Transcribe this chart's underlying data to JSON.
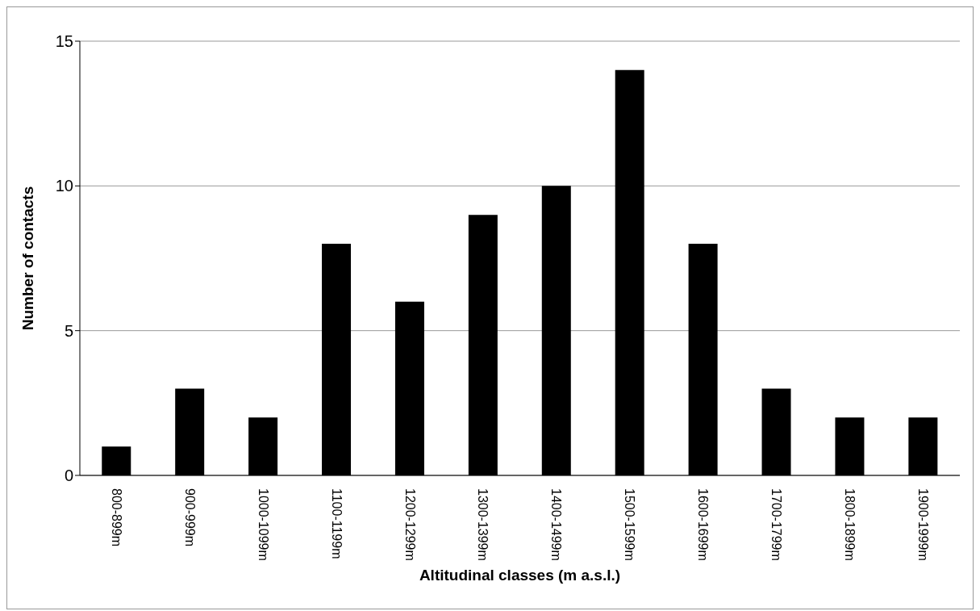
{
  "chart_data": {
    "type": "bar",
    "xlabel": "Altitudinal classes (m a.s.l.)",
    "ylabel": "Number of contacts",
    "categories": [
      "800-899m",
      "900-999m",
      "1000-1099m",
      "1100-1199m",
      "1200-1299m",
      "1300-1399m",
      "1400-1499m",
      "1500-1599m",
      "1600-1699m",
      "1700-1799m",
      "1800-1899m",
      "1900-1999m"
    ],
    "values": [
      1,
      3,
      2,
      8,
      6,
      9,
      10,
      14,
      8,
      3,
      2,
      2
    ],
    "color": "#000000",
    "ylim": [
      0,
      15
    ],
    "yticks": [
      0,
      5,
      10,
      15
    ],
    "grid": "y",
    "legend": false
  }
}
